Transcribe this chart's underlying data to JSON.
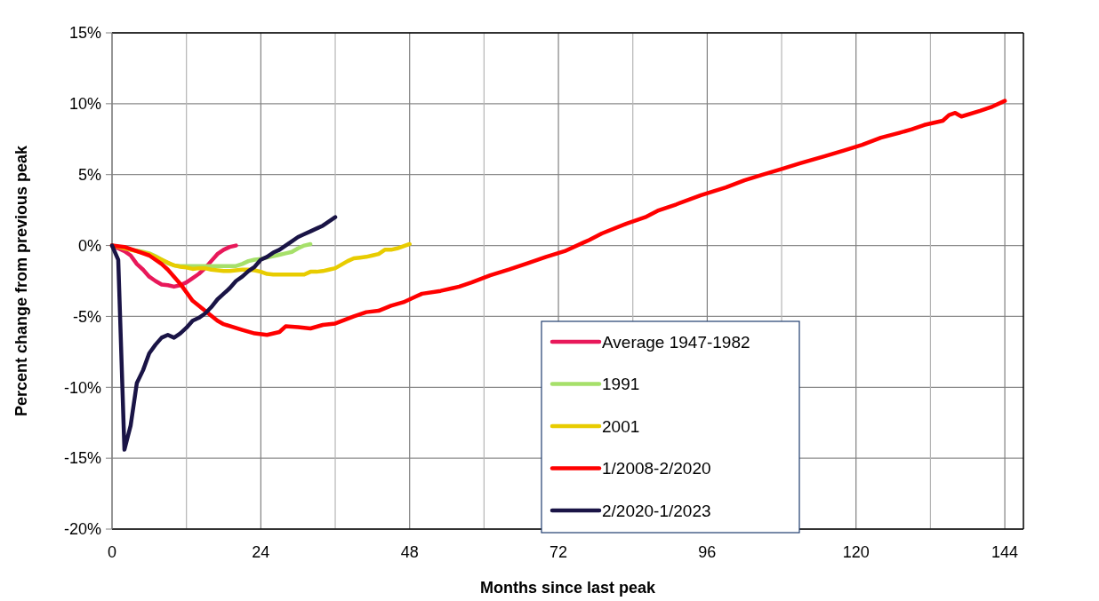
{
  "chart_data": {
    "type": "line",
    "xlabel": "Months since last peak",
    "ylabel": "Percent change from previous peak",
    "xlim": [
      0,
      147
    ],
    "xticks": [
      0,
      {
        "value": 12,
        "label": null
      },
      24,
      {
        "value": 36,
        "label": null
      },
      48,
      {
        "value": 60,
        "label": null
      },
      72,
      {
        "value": 84,
        "label": null
      },
      96,
      {
        "value": 108,
        "label": null
      },
      120,
      {
        "value": 132,
        "label": null
      },
      144
    ],
    "ylim": [
      -20,
      15
    ],
    "yticks": [
      {
        "value": -20,
        "label": "-20%"
      },
      {
        "value": -15,
        "label": "-15%"
      },
      {
        "value": -10,
        "label": "-10%"
      },
      {
        "value": -5,
        "label": "-5%"
      },
      {
        "value": 0,
        "label": "0%"
      },
      {
        "value": 5,
        "label": "5%"
      },
      {
        "value": 10,
        "label": "10%"
      },
      {
        "value": 15,
        "label": "15%"
      }
    ],
    "grid": true,
    "legend": "bottom",
    "marker": "none",
    "line_style": "solid",
    "series": [
      {
        "name": "Average 1947-1982",
        "color": "#e8185a",
        "x": [
          0,
          1,
          2,
          3,
          4,
          5,
          6,
          7,
          8,
          9,
          10,
          11,
          12,
          13,
          14,
          15,
          16,
          17,
          18,
          19,
          20
        ],
        "values": [
          0,
          -0.2,
          -0.4,
          -0.7,
          -1.3,
          -1.7,
          -2.2,
          -2.5,
          -2.75,
          -2.8,
          -2.9,
          -2.8,
          -2.6,
          -2.3,
          -2.0,
          -1.6,
          -1.1,
          -0.6,
          -0.3,
          -0.1,
          0
        ]
      },
      {
        "name": "1991",
        "color": "#a6e06a",
        "x": [
          3,
          4,
          5,
          6,
          7,
          8,
          9,
          10,
          11,
          12,
          13,
          14,
          15,
          16,
          17,
          18,
          19,
          20,
          21,
          22,
          23,
          24,
          25,
          26,
          27,
          28,
          29,
          30,
          31,
          32
        ],
        "values": [
          -0.3,
          -0.35,
          -0.45,
          -0.55,
          -0.75,
          -1.0,
          -1.25,
          -1.4,
          -1.45,
          -1.45,
          -1.45,
          -1.45,
          -1.45,
          -1.45,
          -1.45,
          -1.45,
          -1.45,
          -1.45,
          -1.3,
          -1.1,
          -1.0,
          -0.95,
          -0.85,
          -0.75,
          -0.65,
          -0.55,
          -0.45,
          -0.2,
          0,
          0.1
        ]
      },
      {
        "name": "2001",
        "color": "#e8cc00",
        "x": [
          0,
          1,
          2,
          3,
          4,
          5,
          6,
          7,
          8,
          9,
          10,
          11,
          12,
          13,
          14,
          15,
          16,
          17,
          18,
          19,
          20,
          21,
          22,
          23,
          24,
          25,
          26,
          27,
          28,
          29,
          30,
          31,
          32,
          33,
          34,
          35,
          36,
          37,
          38,
          39,
          40,
          41,
          42,
          43,
          44,
          45,
          46,
          47,
          48
        ],
        "values": [
          0,
          -0.1,
          -0.2,
          -0.3,
          -0.4,
          -0.5,
          -0.6,
          -0.8,
          -1.0,
          -1.2,
          -1.4,
          -1.5,
          -1.55,
          -1.65,
          -1.6,
          -1.6,
          -1.7,
          -1.75,
          -1.8,
          -1.8,
          -1.75,
          -1.7,
          -1.7,
          -1.75,
          -1.85,
          -2.0,
          -2.05,
          -2.05,
          -2.05,
          -2.05,
          -2.05,
          -2.05,
          -1.85,
          -1.85,
          -1.8,
          -1.7,
          -1.6,
          -1.35,
          -1.1,
          -0.9,
          -0.85,
          -0.8,
          -0.7,
          -0.6,
          -0.3,
          -0.3,
          -0.2,
          -0.05,
          0.1
        ]
      },
      {
        "name": "1/2008-2/2020",
        "color": "#ff0000",
        "x": [
          0,
          2,
          4,
          6,
          8,
          9,
          11,
          13,
          15,
          17,
          18,
          21,
          23,
          25,
          27,
          28,
          30,
          32,
          34,
          36,
          39,
          41,
          43,
          45,
          47,
          49,
          50,
          53,
          56,
          58,
          61,
          64,
          67,
          70,
          73,
          76,
          77,
          79,
          83,
          86,
          88,
          91,
          95,
          99,
          102,
          105,
          108,
          111,
          115,
          118,
          121,
          124,
          127,
          129,
          131,
          134,
          135,
          136,
          137,
          140,
          142,
          144
        ],
        "values": [
          0,
          -0.1,
          -0.4,
          -0.7,
          -1.3,
          -1.7,
          -2.7,
          -3.9,
          -4.6,
          -5.3,
          -5.55,
          -5.95,
          -6.2,
          -6.3,
          -6.1,
          -5.7,
          -5.75,
          -5.85,
          -5.6,
          -5.5,
          -5.0,
          -4.7,
          -4.6,
          -4.25,
          -4.0,
          -3.6,
          -3.4,
          -3.2,
          -2.9,
          -2.6,
          -2.1,
          -1.7,
          -1.25,
          -0.8,
          -0.4,
          0.2,
          0.4,
          0.85,
          1.55,
          2.0,
          2.45,
          2.9,
          3.55,
          4.1,
          4.6,
          5.0,
          5.4,
          5.8,
          6.3,
          6.7,
          7.1,
          7.6,
          7.95,
          8.2,
          8.5,
          8.8,
          9.2,
          9.35,
          9.1,
          9.5,
          9.8,
          10.2
        ]
      },
      {
        "name": "2/2020-1/2023",
        "color": "#1a1446",
        "x": [
          0,
          1,
          2,
          3,
          4,
          5,
          6,
          7,
          8,
          9,
          10,
          11,
          12,
          13,
          14,
          15,
          16,
          17,
          18,
          19,
          20,
          21,
          22,
          23,
          24,
          25,
          26,
          27,
          28,
          29,
          30,
          31,
          32,
          33,
          34,
          35,
          36
        ],
        "values": [
          0,
          -1.0,
          -14.4,
          -12.7,
          -9.7,
          -8.8,
          -7.6,
          -7.0,
          -6.5,
          -6.3,
          -6.5,
          -6.2,
          -5.8,
          -5.3,
          -5.1,
          -4.8,
          -4.35,
          -3.8,
          -3.4,
          -3.0,
          -2.5,
          -2.2,
          -1.8,
          -1.5,
          -1.0,
          -0.8,
          -0.5,
          -0.3,
          0,
          0.3,
          0.6,
          0.8,
          1.0,
          1.2,
          1.4,
          1.7,
          2.0
        ]
      }
    ]
  }
}
